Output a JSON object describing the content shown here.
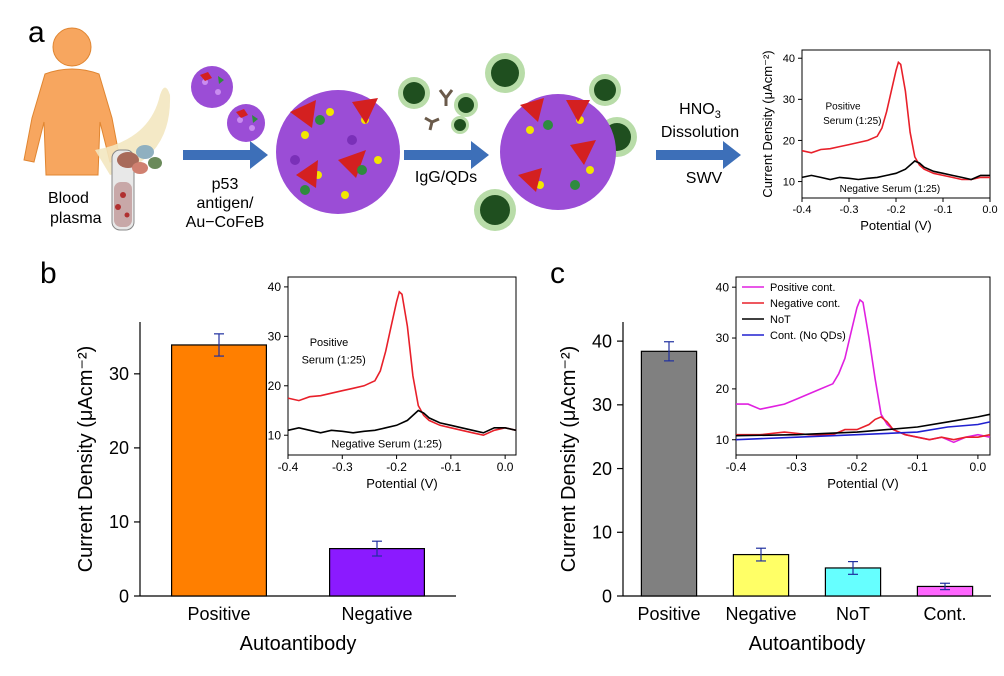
{
  "panel_labels": {
    "a": "a",
    "b": "b",
    "c": "c"
  },
  "schematic": {
    "sample_label_1": "Blood",
    "sample_label_2": "plasma",
    "step1_line1": "p53",
    "step1_line2": "antigen/",
    "step1_line3": "Au−CoFeB",
    "step2_label": "IgG/QDs",
    "step3_line1": "HNO",
    "step3_sub": "3",
    "step3_line2": "Dissolution",
    "step3_line3": "SWV"
  },
  "colors": {
    "body": "#f7a65f",
    "bead": "#9b4dd6",
    "antigen": "#d42020",
    "qd_core": "#1f4f1f",
    "qd_halo": "#b8dca8",
    "arrow": "#3d6fb8",
    "positive_curve": "#e8202a",
    "negative_curve": "#000000",
    "bar_b_positive": "#ff7f00",
    "bar_b_negative": "#8b1aff",
    "bar_c_positive": "#808080",
    "bar_c_negative": "#ffff66",
    "bar_c_not": "#66ffff",
    "bar_c_cont": "#ff66ff",
    "inset_c_positive": "#e020e0",
    "inset_c_negative": "#e8202a",
    "inset_c_not": "#000000",
    "inset_c_cont": "#2020d0"
  },
  "chart_data": [
    {
      "id": "a-inset",
      "type": "line",
      "xlabel": "Potential (V)",
      "ylabel": "Current Density (μAcm⁻²)",
      "xlim": [
        -0.4,
        0.0
      ],
      "ylim": [
        6,
        42
      ],
      "x_ticks": [
        -0.4,
        -0.3,
        -0.2,
        -0.1,
        0.0
      ],
      "x_tick_labels": [
        "-0.4",
        "-0.3",
        "-0.2",
        "-0.1",
        "0.0"
      ],
      "y_ticks": [
        10,
        20,
        30,
        40
      ],
      "y_tick_labels": [
        "10",
        "20",
        "30",
        "40"
      ],
      "annotations": [
        {
          "text": "Positive",
          "x": -0.35,
          "y": 27.5
        },
        {
          "text": "Serum (1:25)",
          "x": -0.355,
          "y": 24
        },
        {
          "text": "Negative Serum (1:25)",
          "x": -0.32,
          "y": 7.5
        }
      ],
      "series": [
        {
          "colorKey": "positive_curve",
          "x": [
            -0.4,
            -0.38,
            -0.36,
            -0.34,
            -0.32,
            -0.3,
            -0.28,
            -0.26,
            -0.24,
            -0.23,
            -0.22,
            -0.21,
            -0.2,
            -0.195,
            -0.19,
            -0.18,
            -0.17,
            -0.16,
            -0.15,
            -0.14,
            -0.12,
            -0.1,
            -0.08,
            -0.06,
            -0.04,
            -0.02,
            0.0
          ],
          "y": [
            17.5,
            17,
            17.8,
            18,
            18.5,
            19,
            19.5,
            20,
            21,
            23,
            27,
            32,
            37,
            39,
            38.5,
            32,
            22,
            16,
            14,
            13,
            12,
            11.5,
            11,
            10.5,
            10.5,
            11,
            11
          ]
        },
        {
          "colorKey": "negative_curve",
          "x": [
            -0.4,
            -0.38,
            -0.36,
            -0.34,
            -0.32,
            -0.3,
            -0.28,
            -0.26,
            -0.24,
            -0.22,
            -0.2,
            -0.18,
            -0.17,
            -0.16,
            -0.15,
            -0.14,
            -0.12,
            -0.1,
            -0.08,
            -0.06,
            -0.04,
            -0.02,
            0.0
          ],
          "y": [
            11,
            11.5,
            11,
            10.5,
            11,
            10.8,
            10.5,
            10.8,
            11,
            11.5,
            12,
            13,
            14,
            15,
            14.5,
            13.5,
            12.5,
            12,
            11.5,
            11,
            10.5,
            11.5,
            11.5
          ]
        }
      ]
    },
    {
      "id": "b-bar",
      "type": "bar",
      "xlabel": "Autoantibody",
      "ylabel": "Current Density (μAcm⁻²)",
      "categories": [
        "Positive",
        "Negative"
      ],
      "values": [
        33.9,
        6.4
      ],
      "errors": [
        1.5,
        1.0
      ],
      "colorKeys": [
        "bar_b_positive",
        "bar_b_negative"
      ],
      "ylim": [
        0,
        37
      ],
      "y_ticks": [
        0,
        10,
        20,
        30
      ],
      "y_tick_labels": [
        "0",
        "10",
        "20",
        "30"
      ]
    },
    {
      "id": "b-inset",
      "type": "line",
      "xlabel": "Potential (V)",
      "ylabel": "",
      "xlim": [
        -0.4,
        0.02
      ],
      "ylim": [
        6,
        42
      ],
      "x_ticks": [
        -0.4,
        -0.3,
        -0.2,
        -0.1,
        0.0
      ],
      "x_tick_labels": [
        "-0.4",
        "-0.3",
        "-0.2",
        "-0.1",
        "0.0"
      ],
      "y_ticks": [
        10,
        20,
        30,
        40
      ],
      "y_tick_labels": [
        "10",
        "20",
        "30",
        "40"
      ],
      "annotations": [
        {
          "text": "Positive",
          "x": -0.36,
          "y": 28
        },
        {
          "text": "Serum (1:25)",
          "x": -0.375,
          "y": 24.5
        },
        {
          "text": "Negative Serum (1:25)",
          "x": -0.32,
          "y": 7.5
        }
      ],
      "series": [
        {
          "colorKey": "positive_curve",
          "x": [
            -0.4,
            -0.38,
            -0.36,
            -0.34,
            -0.32,
            -0.3,
            -0.28,
            -0.26,
            -0.24,
            -0.23,
            -0.22,
            -0.21,
            -0.2,
            -0.195,
            -0.19,
            -0.18,
            -0.17,
            -0.16,
            -0.15,
            -0.14,
            -0.12,
            -0.1,
            -0.08,
            -0.06,
            -0.04,
            -0.02,
            0.0,
            0.02
          ],
          "y": [
            17.5,
            17,
            17.8,
            18,
            18.5,
            19,
            19.5,
            20,
            21,
            23,
            27,
            32,
            37,
            39,
            38.5,
            32,
            22,
            16,
            14,
            13,
            12,
            11.5,
            11,
            10.5,
            10,
            11,
            11.5,
            11
          ]
        },
        {
          "colorKey": "negative_curve",
          "x": [
            -0.4,
            -0.38,
            -0.36,
            -0.34,
            -0.32,
            -0.3,
            -0.28,
            -0.26,
            -0.24,
            -0.22,
            -0.2,
            -0.18,
            -0.17,
            -0.16,
            -0.15,
            -0.14,
            -0.12,
            -0.1,
            -0.08,
            -0.06,
            -0.04,
            -0.02,
            0.0,
            0.02
          ],
          "y": [
            11,
            11.5,
            11,
            10.5,
            11,
            10.8,
            10.5,
            10.8,
            11,
            11.5,
            12,
            13,
            14,
            15,
            14.5,
            13.5,
            12.5,
            12,
            11.5,
            11,
            10.5,
            11.5,
            11.5,
            11
          ]
        }
      ]
    },
    {
      "id": "c-bar",
      "type": "bar",
      "xlabel": "Autoantibody",
      "ylabel": "Current Density (μAcm⁻²)",
      "categories": [
        "Positive",
        "Negative",
        "NoT",
        "Cont."
      ],
      "values": [
        38.4,
        6.5,
        4.4,
        1.5
      ],
      "errors": [
        1.5,
        1.0,
        1.0,
        0.5
      ],
      "colorKeys": [
        "bar_c_positive",
        "bar_c_negative",
        "bar_c_not",
        "bar_c_cont"
      ],
      "ylim": [
        0,
        43
      ],
      "y_ticks": [
        0,
        10,
        20,
        30,
        40
      ],
      "y_tick_labels": [
        "0",
        "10",
        "20",
        "30",
        "40"
      ]
    },
    {
      "id": "c-inset",
      "type": "line",
      "xlabel": "Potential (V)",
      "ylabel": "",
      "xlim": [
        -0.4,
        0.02
      ],
      "ylim": [
        7,
        42
      ],
      "x_ticks": [
        -0.4,
        -0.3,
        -0.2,
        -0.1,
        0.0
      ],
      "x_tick_labels": [
        "-0.4",
        "-0.3",
        "-0.2",
        "-0.1",
        "0.0"
      ],
      "y_ticks": [
        10,
        20,
        30,
        40
      ],
      "y_tick_labels": [
        "10",
        "20",
        "30",
        "40"
      ],
      "legend": [
        "Positive cont.",
        "Negative cont.",
        "NoT",
        "Cont. (No QDs)"
      ],
      "legend_position": "top-left",
      "series": [
        {
          "name": "Positive cont.",
          "colorKey": "inset_c_positive",
          "x": [
            -0.4,
            -0.38,
            -0.36,
            -0.34,
            -0.32,
            -0.3,
            -0.28,
            -0.26,
            -0.24,
            -0.23,
            -0.22,
            -0.21,
            -0.2,
            -0.195,
            -0.19,
            -0.18,
            -0.17,
            -0.16,
            -0.15,
            -0.14,
            -0.12,
            -0.1,
            -0.08,
            -0.06,
            -0.04,
            -0.02,
            0.0,
            0.02
          ],
          "y": [
            17,
            17,
            16,
            16.5,
            17,
            18,
            19,
            20,
            21,
            23,
            26,
            31,
            36,
            37.5,
            37,
            30,
            22,
            15,
            13,
            12,
            11,
            10.5,
            10,
            10.5,
            9.5,
            10.5,
            11,
            10.5
          ]
        },
        {
          "name": "Negative cont.",
          "colorKey": "inset_c_negative",
          "x": [
            -0.4,
            -0.36,
            -0.32,
            -0.28,
            -0.24,
            -0.22,
            -0.2,
            -0.18,
            -0.17,
            -0.16,
            -0.15,
            -0.14,
            -0.12,
            -0.1,
            -0.08,
            -0.06,
            -0.04,
            -0.02,
            0.0,
            0.02
          ],
          "y": [
            11,
            11,
            11.5,
            11,
            11,
            12,
            12,
            13,
            14,
            14.5,
            13.5,
            12,
            11,
            10.5,
            10,
            10.5,
            10,
            10.5,
            10.5,
            11
          ]
        },
        {
          "name": "NoT",
          "colorKey": "inset_c_not",
          "x": [
            -0.4,
            -0.3,
            -0.2,
            -0.1,
            -0.05,
            0.0,
            0.02
          ],
          "y": [
            10.8,
            11,
            11.5,
            12.5,
            13.5,
            14.5,
            15
          ]
        },
        {
          "name": "Cont. (No QDs)",
          "colorKey": "inset_c_cont",
          "x": [
            -0.4,
            -0.3,
            -0.2,
            -0.1,
            -0.05,
            0.0,
            0.02
          ],
          "y": [
            10,
            10.5,
            11,
            11.5,
            12.5,
            13,
            13.5
          ]
        }
      ]
    }
  ]
}
